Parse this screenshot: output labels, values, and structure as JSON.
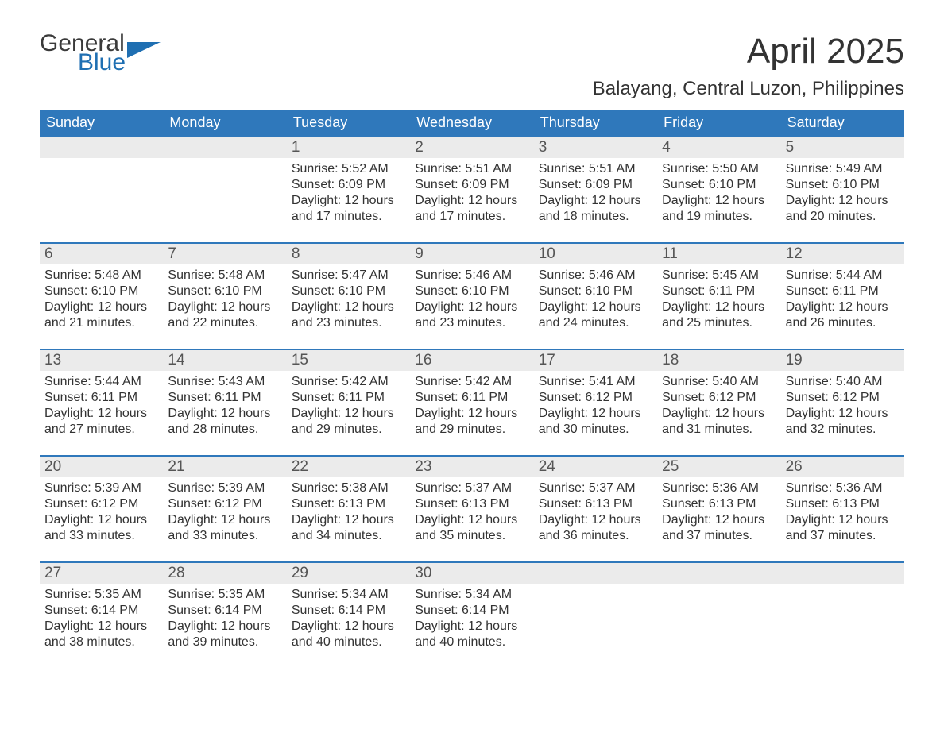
{
  "brand": {
    "word1": "General",
    "word2": "Blue",
    "flag_color": "#1f6fb2",
    "text_color_dark": "#3a3a3a"
  },
  "title": "April 2025",
  "subtitle": "Balayang, Central Luzon, Philippines",
  "colors": {
    "header_bg": "#2f78bb",
    "header_text": "#ffffff",
    "daynum_bg": "#ebebeb",
    "daynum_text": "#555555",
    "body_text": "#333333",
    "week_border": "#2f78bb",
    "page_bg": "#ffffff"
  },
  "typography": {
    "title_fontsize": 44,
    "subtitle_fontsize": 24,
    "dow_fontsize": 18,
    "daynum_fontsize": 19,
    "cell_fontsize": 16
  },
  "days_of_week": [
    "Sunday",
    "Monday",
    "Tuesday",
    "Wednesday",
    "Thursday",
    "Friday",
    "Saturday"
  ],
  "weeks": [
    [
      {
        "num": "",
        "sunrise": "",
        "sunset": "",
        "daylight1": "",
        "daylight2": ""
      },
      {
        "num": "",
        "sunrise": "",
        "sunset": "",
        "daylight1": "",
        "daylight2": ""
      },
      {
        "num": "1",
        "sunrise": "Sunrise: 5:52 AM",
        "sunset": "Sunset: 6:09 PM",
        "daylight1": "Daylight: 12 hours",
        "daylight2": "and 17 minutes."
      },
      {
        "num": "2",
        "sunrise": "Sunrise: 5:51 AM",
        "sunset": "Sunset: 6:09 PM",
        "daylight1": "Daylight: 12 hours",
        "daylight2": "and 17 minutes."
      },
      {
        "num": "3",
        "sunrise": "Sunrise: 5:51 AM",
        "sunset": "Sunset: 6:09 PM",
        "daylight1": "Daylight: 12 hours",
        "daylight2": "and 18 minutes."
      },
      {
        "num": "4",
        "sunrise": "Sunrise: 5:50 AM",
        "sunset": "Sunset: 6:10 PM",
        "daylight1": "Daylight: 12 hours",
        "daylight2": "and 19 minutes."
      },
      {
        "num": "5",
        "sunrise": "Sunrise: 5:49 AM",
        "sunset": "Sunset: 6:10 PM",
        "daylight1": "Daylight: 12 hours",
        "daylight2": "and 20 minutes."
      }
    ],
    [
      {
        "num": "6",
        "sunrise": "Sunrise: 5:48 AM",
        "sunset": "Sunset: 6:10 PM",
        "daylight1": "Daylight: 12 hours",
        "daylight2": "and 21 minutes."
      },
      {
        "num": "7",
        "sunrise": "Sunrise: 5:48 AM",
        "sunset": "Sunset: 6:10 PM",
        "daylight1": "Daylight: 12 hours",
        "daylight2": "and 22 minutes."
      },
      {
        "num": "8",
        "sunrise": "Sunrise: 5:47 AM",
        "sunset": "Sunset: 6:10 PM",
        "daylight1": "Daylight: 12 hours",
        "daylight2": "and 23 minutes."
      },
      {
        "num": "9",
        "sunrise": "Sunrise: 5:46 AM",
        "sunset": "Sunset: 6:10 PM",
        "daylight1": "Daylight: 12 hours",
        "daylight2": "and 23 minutes."
      },
      {
        "num": "10",
        "sunrise": "Sunrise: 5:46 AM",
        "sunset": "Sunset: 6:10 PM",
        "daylight1": "Daylight: 12 hours",
        "daylight2": "and 24 minutes."
      },
      {
        "num": "11",
        "sunrise": "Sunrise: 5:45 AM",
        "sunset": "Sunset: 6:11 PM",
        "daylight1": "Daylight: 12 hours",
        "daylight2": "and 25 minutes."
      },
      {
        "num": "12",
        "sunrise": "Sunrise: 5:44 AM",
        "sunset": "Sunset: 6:11 PM",
        "daylight1": "Daylight: 12 hours",
        "daylight2": "and 26 minutes."
      }
    ],
    [
      {
        "num": "13",
        "sunrise": "Sunrise: 5:44 AM",
        "sunset": "Sunset: 6:11 PM",
        "daylight1": "Daylight: 12 hours",
        "daylight2": "and 27 minutes."
      },
      {
        "num": "14",
        "sunrise": "Sunrise: 5:43 AM",
        "sunset": "Sunset: 6:11 PM",
        "daylight1": "Daylight: 12 hours",
        "daylight2": "and 28 minutes."
      },
      {
        "num": "15",
        "sunrise": "Sunrise: 5:42 AM",
        "sunset": "Sunset: 6:11 PM",
        "daylight1": "Daylight: 12 hours",
        "daylight2": "and 29 minutes."
      },
      {
        "num": "16",
        "sunrise": "Sunrise: 5:42 AM",
        "sunset": "Sunset: 6:11 PM",
        "daylight1": "Daylight: 12 hours",
        "daylight2": "and 29 minutes."
      },
      {
        "num": "17",
        "sunrise": "Sunrise: 5:41 AM",
        "sunset": "Sunset: 6:12 PM",
        "daylight1": "Daylight: 12 hours",
        "daylight2": "and 30 minutes."
      },
      {
        "num": "18",
        "sunrise": "Sunrise: 5:40 AM",
        "sunset": "Sunset: 6:12 PM",
        "daylight1": "Daylight: 12 hours",
        "daylight2": "and 31 minutes."
      },
      {
        "num": "19",
        "sunrise": "Sunrise: 5:40 AM",
        "sunset": "Sunset: 6:12 PM",
        "daylight1": "Daylight: 12 hours",
        "daylight2": "and 32 minutes."
      }
    ],
    [
      {
        "num": "20",
        "sunrise": "Sunrise: 5:39 AM",
        "sunset": "Sunset: 6:12 PM",
        "daylight1": "Daylight: 12 hours",
        "daylight2": "and 33 minutes."
      },
      {
        "num": "21",
        "sunrise": "Sunrise: 5:39 AM",
        "sunset": "Sunset: 6:12 PM",
        "daylight1": "Daylight: 12 hours",
        "daylight2": "and 33 minutes."
      },
      {
        "num": "22",
        "sunrise": "Sunrise: 5:38 AM",
        "sunset": "Sunset: 6:13 PM",
        "daylight1": "Daylight: 12 hours",
        "daylight2": "and 34 minutes."
      },
      {
        "num": "23",
        "sunrise": "Sunrise: 5:37 AM",
        "sunset": "Sunset: 6:13 PM",
        "daylight1": "Daylight: 12 hours",
        "daylight2": "and 35 minutes."
      },
      {
        "num": "24",
        "sunrise": "Sunrise: 5:37 AM",
        "sunset": "Sunset: 6:13 PM",
        "daylight1": "Daylight: 12 hours",
        "daylight2": "and 36 minutes."
      },
      {
        "num": "25",
        "sunrise": "Sunrise: 5:36 AM",
        "sunset": "Sunset: 6:13 PM",
        "daylight1": "Daylight: 12 hours",
        "daylight2": "and 37 minutes."
      },
      {
        "num": "26",
        "sunrise": "Sunrise: 5:36 AM",
        "sunset": "Sunset: 6:13 PM",
        "daylight1": "Daylight: 12 hours",
        "daylight2": "and 37 minutes."
      }
    ],
    [
      {
        "num": "27",
        "sunrise": "Sunrise: 5:35 AM",
        "sunset": "Sunset: 6:14 PM",
        "daylight1": "Daylight: 12 hours",
        "daylight2": "and 38 minutes."
      },
      {
        "num": "28",
        "sunrise": "Sunrise: 5:35 AM",
        "sunset": "Sunset: 6:14 PM",
        "daylight1": "Daylight: 12 hours",
        "daylight2": "and 39 minutes."
      },
      {
        "num": "29",
        "sunrise": "Sunrise: 5:34 AM",
        "sunset": "Sunset: 6:14 PM",
        "daylight1": "Daylight: 12 hours",
        "daylight2": "and 40 minutes."
      },
      {
        "num": "30",
        "sunrise": "Sunrise: 5:34 AM",
        "sunset": "Sunset: 6:14 PM",
        "daylight1": "Daylight: 12 hours",
        "daylight2": "and 40 minutes."
      },
      {
        "num": "",
        "sunrise": "",
        "sunset": "",
        "daylight1": "",
        "daylight2": ""
      },
      {
        "num": "",
        "sunrise": "",
        "sunset": "",
        "daylight1": "",
        "daylight2": ""
      },
      {
        "num": "",
        "sunrise": "",
        "sunset": "",
        "daylight1": "",
        "daylight2": ""
      }
    ]
  ]
}
